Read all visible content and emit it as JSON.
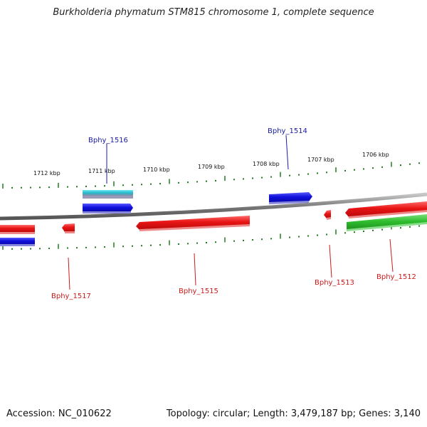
{
  "title": "Burkholderia phymatum STM815 chromosome 1, complete sequence",
  "footer": {
    "accession": "Accession: NC_010622",
    "summary": "Topology: circular; Length: 3,479,187 bp; Genes: 3,140"
  },
  "ruler": {
    "tick_labels": [
      "1712 kbp",
      "1711 kbp",
      "1710 kbp",
      "1709 kbp",
      "1708 kbp",
      "1707 kbp",
      "1706 kbp"
    ]
  },
  "genes": [
    {
      "label": "Bphy_1516",
      "strand": "forward"
    },
    {
      "label": "Bphy_1514",
      "strand": "forward"
    },
    {
      "label": "Bphy_1517",
      "strand": "reverse"
    },
    {
      "label": "Bphy_1515",
      "strand": "reverse"
    },
    {
      "label": "Bphy_1513",
      "strand": "reverse"
    },
    {
      "label": "Bphy_1512",
      "strand": "reverse"
    }
  ],
  "colors": {
    "forward_label": "#1a1aa8",
    "reverse_label": "#cc1a1a",
    "tick": "#1f7a1f",
    "backbone": "#8a8a8a",
    "cds_red": "#e81414",
    "cds_blue": "#1010dd",
    "cds_green": "#2fbf2f",
    "cds_cyan": "#22bbcc"
  }
}
